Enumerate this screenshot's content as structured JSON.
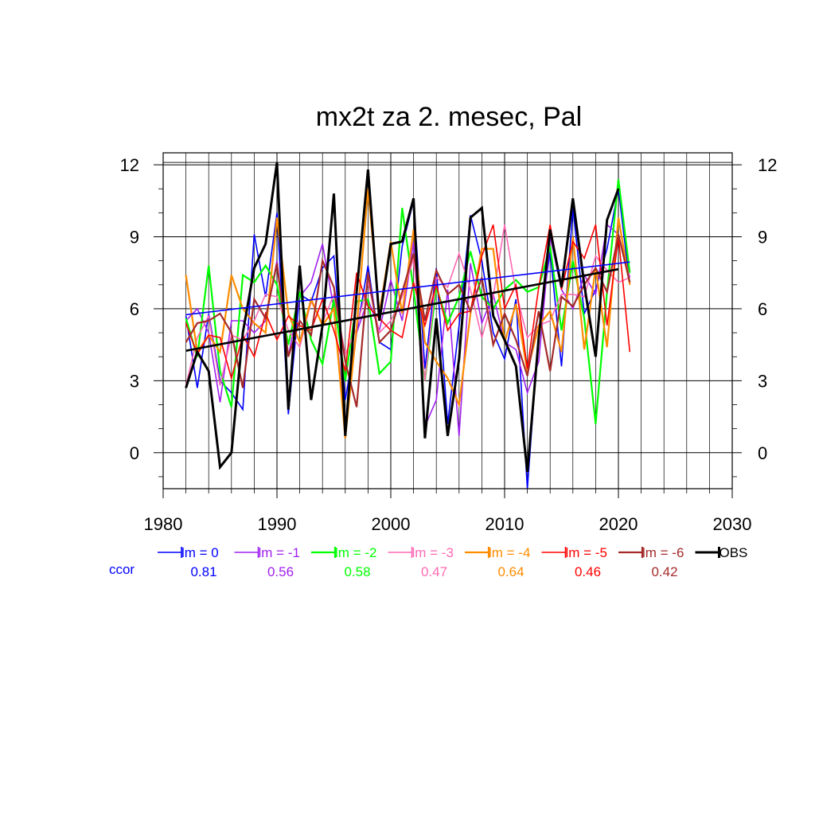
{
  "chart_data": {
    "type": "line",
    "title": "mx2t za 2. mesec, Pal",
    "xlabel": "",
    "ylabel": "",
    "xlim": [
      1980,
      2030
    ],
    "ylim": [
      -1.5,
      12.5
    ],
    "x_ticks": [
      "1980",
      "1990",
      "2000",
      "2010",
      "2020",
      "2030"
    ],
    "y_ticks": [
      "0",
      "3",
      "6",
      "9",
      "12"
    ],
    "y_tick_values": [
      0,
      3,
      6,
      9,
      12
    ],
    "grid": true,
    "years": [
      1982,
      1983,
      1984,
      1985,
      1986,
      1987,
      1988,
      1989,
      1990,
      1991,
      1992,
      1993,
      1994,
      1995,
      1996,
      1997,
      1998,
      1999,
      2000,
      2001,
      2002,
      2003,
      2004,
      2005,
      2006,
      2007,
      2008,
      2009,
      2010,
      2011,
      2012,
      2013,
      2014,
      2015,
      2016,
      2017,
      2018,
      2019,
      2020,
      2021
    ],
    "ccor_label": "ccor",
    "series": [
      {
        "name": "lm = 0",
        "color": "#0000ff",
        "ccor": "0.81",
        "width": 1.6,
        "values": [
          5.7,
          2.7,
          5.8,
          3.0,
          2.5,
          1.8,
          9.1,
          6.5,
          10.0,
          1.6,
          6.6,
          6.3,
          7.7,
          8.2,
          2.2,
          5.0,
          7.8,
          4.6,
          4.3,
          8.6,
          10.5,
          3.5,
          7.7,
          1.2,
          5.3,
          9.9,
          8.0,
          5.0,
          3.9,
          6.4,
          -1.5,
          5.0,
          8.4,
          3.6,
          10.2,
          5.8,
          6.8,
          8.5,
          11.0,
          7.0
        ]
      },
      {
        "name": "lm = -1",
        "color": "#a020f0",
        "ccor": "0.56",
        "width": 1.6,
        "values": [
          5.5,
          6.0,
          5.0,
          2.1,
          5.5,
          5.5,
          5.0,
          5.5,
          8.0,
          4.0,
          6.5,
          7.1,
          8.7,
          6.0,
          1.2,
          5.0,
          6.4,
          5.1,
          7.2,
          5.5,
          8.8,
          1.1,
          2.2,
          6.8,
          0.7,
          7.9,
          5.4,
          6.6,
          4.6,
          4.3,
          2.5,
          3.8,
          9.0,
          6.8,
          6.0,
          7.4,
          6.6,
          9.5,
          9.1,
          7.3
        ]
      },
      {
        "name": "lm = -2",
        "color": "#00ff00",
        "ccor": "0.58",
        "width": 2.2,
        "values": [
          5.6,
          4.0,
          7.8,
          3.4,
          1.9,
          7.4,
          7.1,
          7.8,
          7.0,
          4.5,
          6.7,
          4.7,
          3.7,
          6.4,
          3.0,
          6.3,
          6.4,
          3.3,
          3.8,
          10.2,
          6.8,
          3.0,
          6.9,
          5.4,
          6.5,
          8.4,
          6.5,
          6.0,
          6.8,
          7.2,
          6.7,
          6.9,
          8.6,
          5.1,
          8.0,
          5.6,
          1.2,
          6.7,
          11.4,
          7.5
        ]
      },
      {
        "name": "lm = -3",
        "color": "#ff69b4",
        "ccor": "0.47",
        "width": 1.6,
        "values": [
          2.8,
          4.8,
          5.7,
          2.8,
          4.9,
          4.7,
          5.5,
          6.6,
          6.5,
          5.1,
          4.4,
          6.3,
          5.4,
          6.6,
          4.1,
          5.2,
          7.1,
          5.0,
          5.5,
          6.5,
          8.1,
          3.0,
          7.3,
          6.9,
          8.3,
          6.8,
          4.8,
          6.5,
          9.5,
          6.7,
          4.8,
          5.3,
          5.5,
          6.6,
          6.6,
          6.5,
          8.2,
          7.6,
          7.1,
          7.3
        ]
      },
      {
        "name": "lm = -4",
        "color": "#ff8c00",
        "ccor": "0.64",
        "width": 2.2,
        "values": [
          7.4,
          4.2,
          4.9,
          4.2,
          7.4,
          6.0,
          5.4,
          5.0,
          9.8,
          5.8,
          4.6,
          6.4,
          5.3,
          6.0,
          0.6,
          5.2,
          11.0,
          5.8,
          8.8,
          5.8,
          9.3,
          4.6,
          3.8,
          3.1,
          2.0,
          5.8,
          8.5,
          8.5,
          4.6,
          6.2,
          3.4,
          5.3,
          5.9,
          4.2,
          9.0,
          4.3,
          7.7,
          4.4,
          9.8,
          7.0
        ]
      },
      {
        "name": "lm = -5",
        "color": "#ff0000",
        "ccor": "0.46",
        "width": 1.6,
        "values": [
          5.4,
          4.1,
          4.9,
          4.8,
          3.1,
          4.9,
          4.0,
          5.8,
          4.7,
          5.7,
          5.3,
          5.1,
          6.4,
          5.1,
          3.4,
          7.5,
          6.1,
          5.6,
          5.1,
          4.8,
          7.1,
          5.3,
          7.0,
          5.1,
          5.8,
          5.9,
          8.2,
          9.5,
          6.0,
          7.0,
          3.5,
          6.9,
          9.5,
          6.8,
          8.8,
          8.1,
          9.5,
          5.3,
          9.0,
          4.2
        ]
      },
      {
        "name": "lm = -6",
        "color": "#a52a2a",
        "ccor": "0.42",
        "width": 2.2,
        "values": [
          4.6,
          5.4,
          5.5,
          5.8,
          5.0,
          2.7,
          6.4,
          5.6,
          7.9,
          4.0,
          5.5,
          4.9,
          8.0,
          6.9,
          3.8,
          1.9,
          7.5,
          4.6,
          5.1,
          6.7,
          8.3,
          5.5,
          7.6,
          6.6,
          7.0,
          5.9,
          7.3,
          4.5,
          5.8,
          4.7,
          3.2,
          5.9,
          3.4,
          6.5,
          6.1,
          7.0,
          7.7,
          6.7,
          9.1,
          7.1
        ]
      },
      {
        "name": "OBS",
        "color": "#000000",
        "ccor": "",
        "width": 3,
        "values": [
          2.7,
          4.2,
          3.4,
          -0.6,
          0.0,
          5.0,
          7.7,
          8.7,
          12.1,
          1.8,
          7.8,
          2.2,
          5.3,
          10.8,
          0.7,
          6.7,
          11.8,
          5.5,
          8.7,
          8.8,
          10.6,
          0.6,
          5.6,
          0.7,
          3.9,
          9.8,
          10.2,
          5.7,
          4.7,
          3.6,
          -0.8,
          4.8,
          9.3,
          6.9,
          10.6,
          7.0,
          4.0,
          9.7,
          11.0,
          null
        ]
      }
    ],
    "trend_lines": [
      {
        "series": "lm = 0",
        "color": "#0000ff",
        "x": [
          1982,
          2021
        ],
        "y": [
          5.75,
          7.95
        ],
        "width": 1.6
      },
      {
        "series": "OBS",
        "color": "#000000",
        "x": [
          1982,
          2020
        ],
        "y": [
          4.25,
          7.65
        ],
        "width": 2.6
      }
    ],
    "legend_placement": "bottom"
  }
}
